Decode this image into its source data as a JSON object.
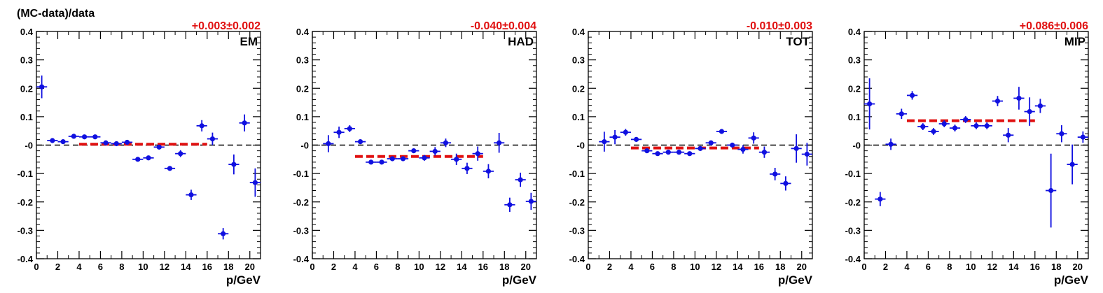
{
  "figure": {
    "ylabel": "(MC-data)/data",
    "xlabel": "p/GeV"
  },
  "style": {
    "marker_color": "#1010e0",
    "fit_color": "#e01010",
    "annotation_color": "#e01010",
    "zero_line_color": "#000000"
  },
  "chart_data": [
    {
      "type": "scatter",
      "panel_label": "EM",
      "fit_annotation": "+0.003±0.002",
      "fit_value": 0.003,
      "fit_range": [
        4,
        16
      ],
      "xlim": [
        0,
        21
      ],
      "ylim": [
        -0.4,
        0.4
      ],
      "xticks": [
        "0",
        "2",
        "4",
        "6",
        "8",
        "10",
        "12",
        "14",
        "16",
        "18",
        "20"
      ],
      "yticks": [
        "-0.4",
        "-0.3",
        "-0.2",
        "-0.1",
        "-0",
        "0.1",
        "0.2",
        "0.3",
        "0.4"
      ],
      "series": [
        {
          "x": [
            0.5,
            1.5,
            2.5,
            3.5,
            4.5,
            5.5,
            6.5,
            7.5,
            8.5,
            9.5,
            10.5,
            11.5,
            12.5,
            13.5,
            14.5,
            15.5,
            16.5,
            17.5,
            18.5,
            19.5,
            20.5
          ],
          "y": [
            0.205,
            0.016,
            0.012,
            0.031,
            0.029,
            0.029,
            0.008,
            0.005,
            0.01,
            -0.05,
            -0.045,
            -0.007,
            -0.082,
            -0.03,
            -0.175,
            0.068,
            0.022,
            -0.312,
            -0.068,
            0.078,
            -0.132
          ],
          "yerr": [
            0.04,
            0.008,
            0.006,
            0.005,
            0.005,
            0.005,
            0.005,
            0.005,
            0.006,
            0.006,
            0.006,
            0.008,
            0.008,
            0.012,
            0.018,
            0.02,
            0.022,
            0.02,
            0.035,
            0.03,
            0.05
          ]
        }
      ]
    },
    {
      "type": "scatter",
      "panel_label": "HAD",
      "fit_annotation": "-0.040±0.004",
      "fit_value": -0.04,
      "fit_range": [
        4,
        16
      ],
      "xlim": [
        0,
        21
      ],
      "ylim": [
        -0.4,
        0.4
      ],
      "xticks": [
        "0",
        "2",
        "4",
        "6",
        "8",
        "10",
        "12",
        "14",
        "16",
        "18",
        "20"
      ],
      "yticks": [
        "-0.4",
        "-0.3",
        "-0.2",
        "-0.1",
        "-0",
        "0.1",
        "0.2",
        "0.3",
        "0.4"
      ],
      "series": [
        {
          "x": [
            1.5,
            2.5,
            3.5,
            4.5,
            5.5,
            6.5,
            7.5,
            8.5,
            9.5,
            10.5,
            11.5,
            12.5,
            13.5,
            14.5,
            15.5,
            16.5,
            17.5,
            18.5,
            19.5,
            20.5
          ],
          "y": [
            0.005,
            0.045,
            0.058,
            0.012,
            -0.06,
            -0.06,
            -0.048,
            -0.048,
            -0.02,
            -0.045,
            -0.022,
            0.008,
            -0.05,
            -0.082,
            -0.03,
            -0.092,
            0.008,
            -0.21,
            -0.122,
            -0.198
          ],
          "yerr": [
            0.03,
            0.02,
            0.012,
            0.008,
            0.006,
            0.006,
            0.006,
            0.006,
            0.008,
            0.01,
            0.015,
            0.015,
            0.02,
            0.02,
            0.025,
            0.025,
            0.035,
            0.025,
            0.025,
            0.03
          ]
        }
      ]
    },
    {
      "type": "scatter",
      "panel_label": "TOT",
      "fit_annotation": "-0.010±0.003",
      "fit_value": -0.01,
      "fit_range": [
        4,
        16
      ],
      "xlim": [
        0,
        21
      ],
      "ylim": [
        -0.4,
        0.4
      ],
      "xticks": [
        "0",
        "2",
        "4",
        "6",
        "8",
        "10",
        "12",
        "14",
        "16",
        "18",
        "20"
      ],
      "yticks": [
        "-0.4",
        "-0.3",
        "-0.2",
        "-0.1",
        "-0",
        "0.1",
        "0.2",
        "0.3",
        "0.4"
      ],
      "series": [
        {
          "x": [
            1.5,
            2.5,
            3.5,
            4.5,
            5.5,
            6.5,
            7.5,
            8.5,
            9.5,
            10.5,
            11.5,
            12.5,
            13.5,
            14.5,
            15.5,
            16.5,
            17.5,
            18.5,
            19.5,
            20.5
          ],
          "y": [
            0.012,
            0.028,
            0.045,
            0.02,
            -0.02,
            -0.03,
            -0.025,
            -0.025,
            -0.03,
            -0.012,
            0.008,
            0.048,
            0.0,
            -0.015,
            0.025,
            -0.025,
            -0.102,
            -0.135,
            -0.012,
            -0.032
          ],
          "yerr": [
            0.035,
            0.025,
            0.012,
            0.008,
            0.006,
            0.006,
            0.006,
            0.006,
            0.006,
            0.006,
            0.006,
            0.008,
            0.008,
            0.015,
            0.02,
            0.02,
            0.022,
            0.025,
            0.05,
            0.04
          ]
        }
      ]
    },
    {
      "type": "scatter",
      "panel_label": "MIP",
      "fit_annotation": "+0.086±0.006",
      "fit_value": 0.086,
      "fit_range": [
        4,
        16
      ],
      "xlim": [
        0,
        21
      ],
      "ylim": [
        -0.4,
        0.4
      ],
      "xticks": [
        "0",
        "2",
        "4",
        "6",
        "8",
        "10",
        "12",
        "14",
        "16",
        "18",
        "20"
      ],
      "yticks": [
        "-0.4",
        "-0.3",
        "-0.2",
        "-0.1",
        "-0",
        "0.1",
        "0.2",
        "0.3",
        "0.4"
      ],
      "series": [
        {
          "x": [
            0.5,
            1.5,
            2.5,
            3.5,
            4.5,
            5.5,
            6.5,
            7.5,
            8.5,
            9.5,
            10.5,
            11.5,
            12.5,
            13.5,
            14.5,
            15.5,
            16.5,
            17.5,
            18.5,
            19.5,
            20.5
          ],
          "y": [
            0.145,
            -0.19,
            0.003,
            0.11,
            0.175,
            0.065,
            0.048,
            0.075,
            0.06,
            0.09,
            0.068,
            0.068,
            0.155,
            0.035,
            0.165,
            0.118,
            0.138,
            -0.16,
            0.04,
            -0.068,
            0.028
          ],
          "yerr": [
            0.09,
            0.025,
            0.02,
            0.018,
            0.015,
            0.012,
            0.012,
            0.012,
            0.012,
            0.012,
            0.012,
            0.012,
            0.018,
            0.025,
            0.04,
            0.05,
            0.025,
            0.13,
            0.03,
            0.07,
            0.02
          ]
        }
      ]
    }
  ]
}
